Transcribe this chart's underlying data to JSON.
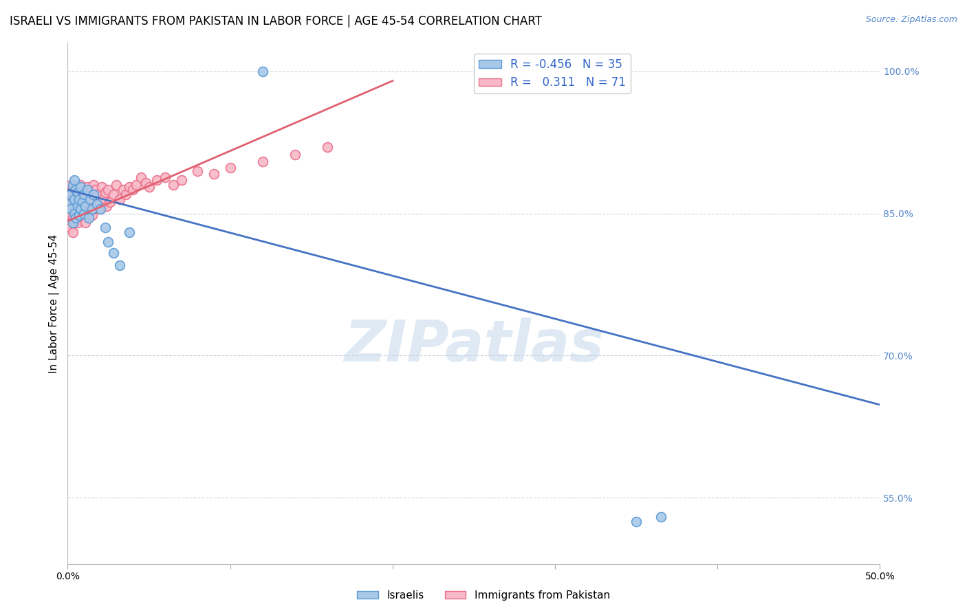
{
  "title": "ISRAELI VS IMMIGRANTS FROM PAKISTAN IN LABOR FORCE | AGE 45-54 CORRELATION CHART",
  "source": "Source: ZipAtlas.com",
  "ylabel": "In Labor Force | Age 45-54",
  "xlim": [
    0.0,
    0.5
  ],
  "ylim": [
    0.48,
    1.03
  ],
  "watermark": "ZIPatlas",
  "israelis_R": -0.456,
  "israelis_N": 35,
  "pakistan_R": 0.311,
  "pakistan_N": 71,
  "israeli_color": "#a8c8e8",
  "pakistan_color": "#f8b8c8",
  "israeli_edge_color": "#5b9bd5",
  "pakistan_edge_color": "#e8708a",
  "israeli_line_color": "#4472c4",
  "pakistan_line_color": "#e06070",
  "legend_label_1": "Israelis",
  "legend_label_2": "Immigrants from Pakistan",
  "background_color": "#ffffff",
  "grid_color": "#c8d4e0",
  "title_fontsize": 12,
  "axis_label_fontsize": 11,
  "tick_fontsize": 10,
  "marker_size": 100,
  "marker_linewidth": 1.2,
  "israelis_x": [
    0.001,
    0.002,
    0.002,
    0.003,
    0.003,
    0.004,
    0.004,
    0.004,
    0.005,
    0.005,
    0.006,
    0.006,
    0.007,
    0.007,
    0.008,
    0.008,
    0.009,
    0.01,
    0.01,
    0.011,
    0.012,
    0.013,
    0.014,
    0.015,
    0.016,
    0.018,
    0.02,
    0.023,
    0.025,
    0.028,
    0.032,
    0.038,
    0.12,
    0.35,
    0.365
  ],
  "israelis_y": [
    0.86,
    0.855,
    0.87,
    0.84,
    0.88,
    0.85,
    0.865,
    0.885,
    0.845,
    0.875,
    0.858,
    0.872,
    0.848,
    0.865,
    0.855,
    0.878,
    0.862,
    0.85,
    0.87,
    0.858,
    0.875,
    0.845,
    0.865,
    0.855,
    0.87,
    0.86,
    0.855,
    0.835,
    0.82,
    0.808,
    0.795,
    0.83,
    1.0,
    0.525,
    0.53
  ],
  "pakistan_x": [
    0.001,
    0.001,
    0.001,
    0.002,
    0.002,
    0.002,
    0.002,
    0.003,
    0.003,
    0.003,
    0.003,
    0.004,
    0.004,
    0.004,
    0.005,
    0.005,
    0.005,
    0.006,
    0.006,
    0.006,
    0.007,
    0.007,
    0.008,
    0.008,
    0.008,
    0.009,
    0.009,
    0.01,
    0.01,
    0.011,
    0.011,
    0.012,
    0.012,
    0.013,
    0.013,
    0.014,
    0.015,
    0.015,
    0.016,
    0.016,
    0.017,
    0.018,
    0.019,
    0.02,
    0.021,
    0.022,
    0.023,
    0.024,
    0.025,
    0.026,
    0.028,
    0.03,
    0.032,
    0.034,
    0.036,
    0.038,
    0.04,
    0.042,
    0.045,
    0.048,
    0.05,
    0.055,
    0.06,
    0.065,
    0.07,
    0.08,
    0.09,
    0.1,
    0.12,
    0.14,
    0.16
  ],
  "pakistan_y": [
    0.85,
    0.87,
    0.84,
    0.855,
    0.865,
    0.88,
    0.835,
    0.86,
    0.845,
    0.875,
    0.83,
    0.858,
    0.87,
    0.84,
    0.862,
    0.85,
    0.878,
    0.855,
    0.865,
    0.84,
    0.858,
    0.872,
    0.848,
    0.862,
    0.88,
    0.855,
    0.865,
    0.85,
    0.87,
    0.858,
    0.84,
    0.865,
    0.878,
    0.855,
    0.872,
    0.862,
    0.87,
    0.848,
    0.88,
    0.855,
    0.875,
    0.862,
    0.87,
    0.855,
    0.878,
    0.865,
    0.872,
    0.858,
    0.875,
    0.862,
    0.87,
    0.88,
    0.865,
    0.875,
    0.87,
    0.878,
    0.875,
    0.88,
    0.888,
    0.882,
    0.878,
    0.885,
    0.888,
    0.88,
    0.885,
    0.895,
    0.892,
    0.898,
    0.905,
    0.912,
    0.92
  ],
  "isr_line_x0": 0.0,
  "isr_line_y0": 0.875,
  "isr_line_x1": 0.5,
  "isr_line_y1": 0.648,
  "pak_line_x0": 0.0,
  "pak_line_y0": 0.842,
  "pak_line_x1": 0.2,
  "pak_line_y1": 0.99
}
